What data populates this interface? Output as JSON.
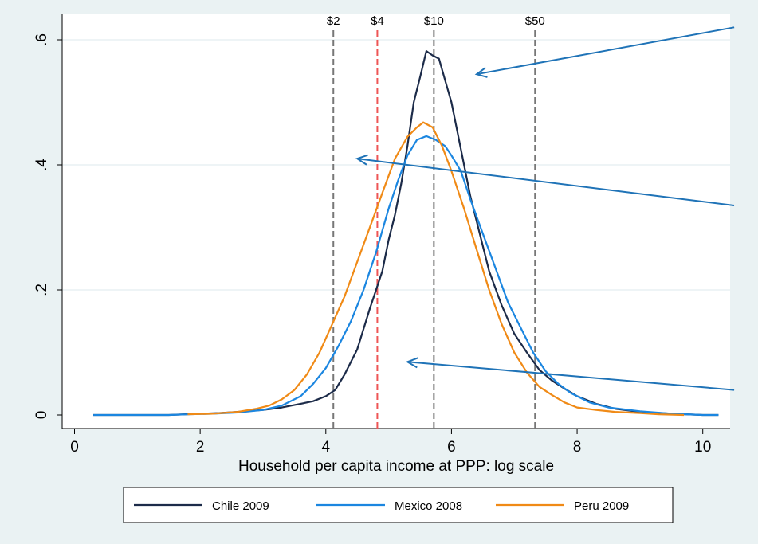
{
  "chart_data": {
    "type": "line",
    "xlabel": "Household per capita income at PPP: log scale",
    "ylabel": "",
    "xlim": [
      0,
      10.5
    ],
    "ylim": [
      0,
      0.6
    ],
    "x_ticks": [
      0,
      2,
      4,
      6,
      8,
      10
    ],
    "x_tick_labels": [
      "0",
      "2",
      "4",
      "6",
      "8",
      "10"
    ],
    "y_ticks": [
      0,
      0.2,
      0.4,
      0.6
    ],
    "y_tick_labels": [
      "0",
      ".2",
      ".4",
      ".6"
    ],
    "grid": "horizontal",
    "legend": "bottom",
    "reference_lines": [
      {
        "x": 4.12,
        "label": "$2",
        "color": "#777777"
      },
      {
        "x": 4.82,
        "label": "$4",
        "color": "#ee5555"
      },
      {
        "x": 5.72,
        "label": "$10",
        "color": "#777777"
      },
      {
        "x": 7.33,
        "label": "$50",
        "color": "#777777"
      }
    ],
    "series": [
      {
        "name": "Chile 2009",
        "color": "#1c2b49",
        "x": [
          0.3,
          1.0,
          1.5,
          2.0,
          2.3,
          2.6,
          3.0,
          3.3,
          3.6,
          3.8,
          4.0,
          4.15,
          4.3,
          4.5,
          4.7,
          4.9,
          5.0,
          5.1,
          5.2,
          5.3,
          5.4,
          5.5,
          5.6,
          5.7,
          5.8,
          5.9,
          6.0,
          6.1,
          6.2,
          6.3,
          6.45,
          6.6,
          6.8,
          7.0,
          7.2,
          7.4,
          7.6,
          7.8,
          8.0,
          8.3,
          8.6,
          9.0,
          9.5,
          10.0,
          10.25
        ],
        "y": [
          0.0,
          0.0,
          0.0,
          0.002,
          0.003,
          0.005,
          0.008,
          0.012,
          0.018,
          0.022,
          0.03,
          0.04,
          0.065,
          0.105,
          0.17,
          0.23,
          0.28,
          0.32,
          0.37,
          0.43,
          0.5,
          0.54,
          0.582,
          0.575,
          0.57,
          0.535,
          0.5,
          0.45,
          0.4,
          0.35,
          0.29,
          0.23,
          0.175,
          0.13,
          0.1,
          0.072,
          0.055,
          0.042,
          0.03,
          0.018,
          0.01,
          0.005,
          0.002,
          0.0,
          0.0
        ]
      },
      {
        "name": "Mexico 2008",
        "color": "#1b86e0",
        "x": [
          0.3,
          1.0,
          1.5,
          1.8,
          2.2,
          2.6,
          3.0,
          3.3,
          3.6,
          3.8,
          4.0,
          4.2,
          4.4,
          4.6,
          4.8,
          5.0,
          5.15,
          5.3,
          5.45,
          5.6,
          5.75,
          5.9,
          6.0,
          6.15,
          6.3,
          6.5,
          6.7,
          6.9,
          7.1,
          7.3,
          7.5,
          7.7,
          7.9,
          8.2,
          8.5,
          9.0,
          9.5,
          10.0,
          10.25
        ],
        "y": [
          0.0,
          0.0,
          0.0,
          0.001,
          0.002,
          0.004,
          0.008,
          0.015,
          0.03,
          0.05,
          0.075,
          0.11,
          0.15,
          0.2,
          0.26,
          0.33,
          0.375,
          0.415,
          0.44,
          0.446,
          0.44,
          0.43,
          0.415,
          0.39,
          0.345,
          0.29,
          0.235,
          0.18,
          0.14,
          0.1,
          0.07,
          0.05,
          0.035,
          0.02,
          0.012,
          0.006,
          0.002,
          0.0,
          0.0
        ]
      },
      {
        "name": "Peru 2009",
        "color": "#f08a16",
        "x": [
          1.8,
          2.2,
          2.6,
          2.9,
          3.1,
          3.3,
          3.5,
          3.7,
          3.9,
          4.1,
          4.3,
          4.5,
          4.7,
          4.9,
          5.1,
          5.3,
          5.45,
          5.55,
          5.7,
          5.85,
          6.0,
          6.2,
          6.4,
          6.6,
          6.8,
          7.0,
          7.2,
          7.4,
          7.6,
          7.8,
          8.0,
          8.3,
          8.6,
          9.0,
          9.3,
          9.7
        ],
        "y": [
          0.001,
          0.002,
          0.005,
          0.01,
          0.015,
          0.025,
          0.04,
          0.065,
          0.1,
          0.145,
          0.19,
          0.245,
          0.3,
          0.355,
          0.41,
          0.445,
          0.46,
          0.468,
          0.46,
          0.43,
          0.39,
          0.33,
          0.265,
          0.2,
          0.145,
          0.1,
          0.068,
          0.045,
          0.032,
          0.02,
          0.012,
          0.008,
          0.005,
          0.003,
          0.001,
          0.0
        ]
      }
    ],
    "annotation_arrows": [
      {
        "color": "#1f73b7",
        "from": [
          10.5,
          0.62
        ],
        "to": [
          6.4,
          0.545
        ]
      },
      {
        "color": "#1f73b7",
        "from": [
          10.5,
          0.335
        ],
        "to": [
          4.5,
          0.41
        ]
      },
      {
        "color": "#1f73b7",
        "from": [
          10.5,
          0.04
        ],
        "to": [
          5.3,
          0.085
        ]
      }
    ]
  }
}
